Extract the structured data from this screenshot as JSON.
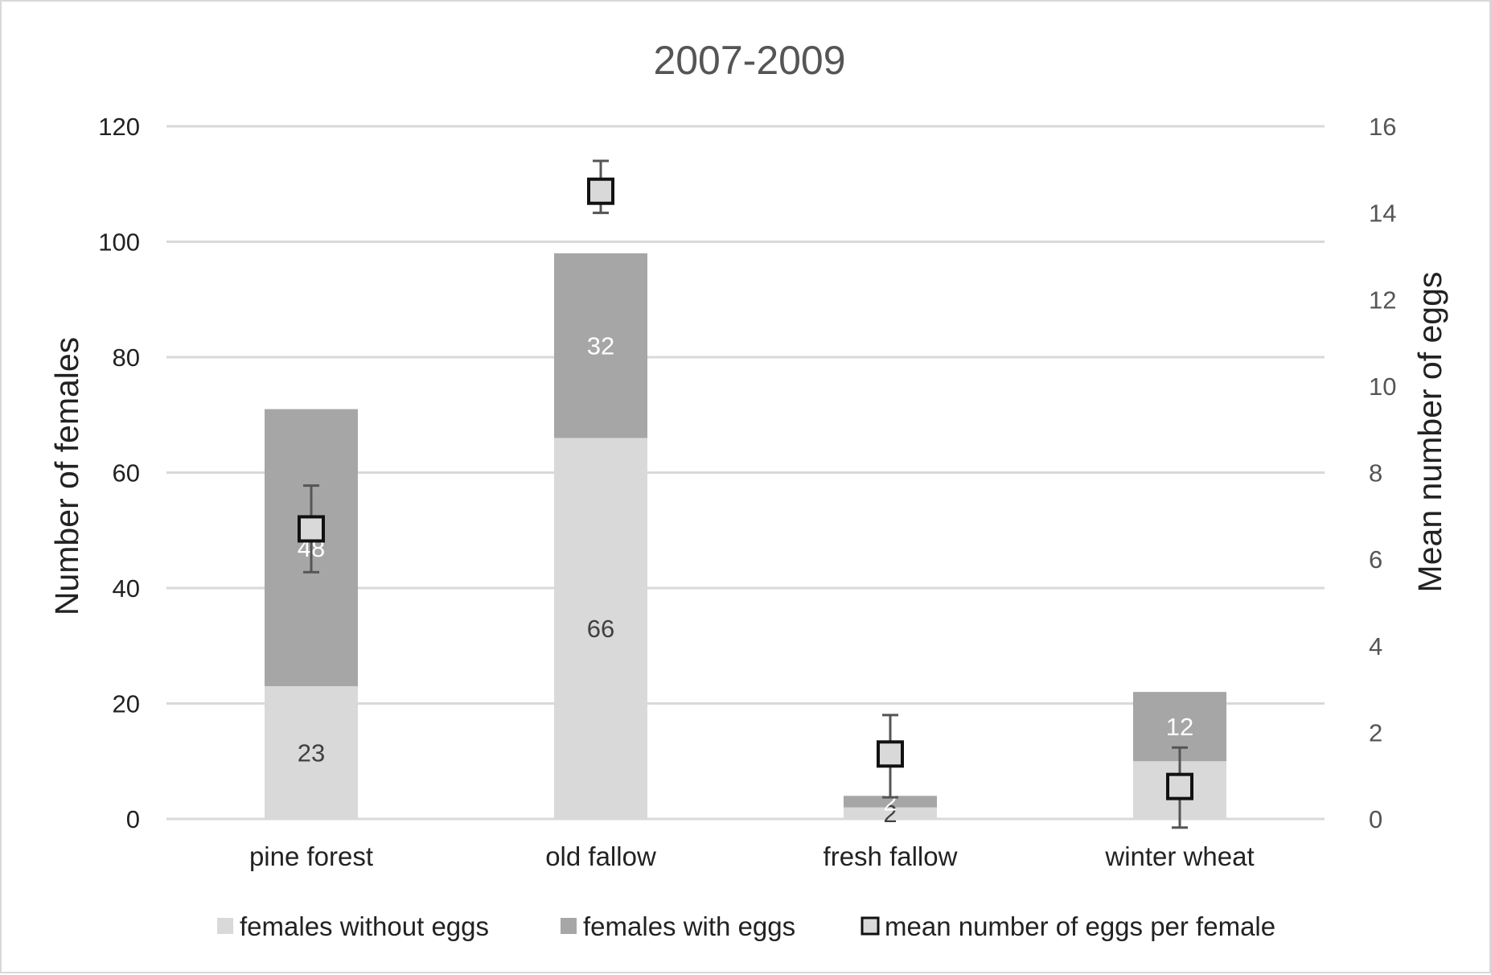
{
  "chart_data": {
    "type": "bar",
    "title": "2007-2009",
    "categories": [
      "pine forest",
      "old fallow",
      "fresh fallow",
      "winter wheat"
    ],
    "series": [
      {
        "name": "females without eggs",
        "values": [
          23,
          66,
          2,
          10
        ],
        "color": "#d9d9d9",
        "label_color": "#404040"
      },
      {
        "name": "females with eggs",
        "values": [
          48,
          32,
          2,
          12
        ],
        "color": "#a6a6a6",
        "label_color": "#ffffff"
      }
    ],
    "secondary_series": {
      "name": "mean number of eggs per female",
      "type": "scatter",
      "marker": "square",
      "values": [
        6.7,
        14.5,
        1.5,
        0.75
      ],
      "error_low": [
        5.7,
        14.0,
        0.5,
        -0.2
      ],
      "error_high": [
        7.7,
        15.2,
        2.4,
        1.65
      ]
    },
    "ylabel": "Number of females",
    "y2label": "Mean number of eggs",
    "ylim": [
      0,
      120
    ],
    "y_ticks": [
      0,
      20,
      40,
      60,
      80,
      100,
      120
    ],
    "y2lim": [
      0,
      16
    ],
    "y2_ticks": [
      0,
      2,
      4,
      6,
      8,
      10,
      12,
      14,
      16
    ],
    "grid": true,
    "legend_position": "bottom"
  }
}
